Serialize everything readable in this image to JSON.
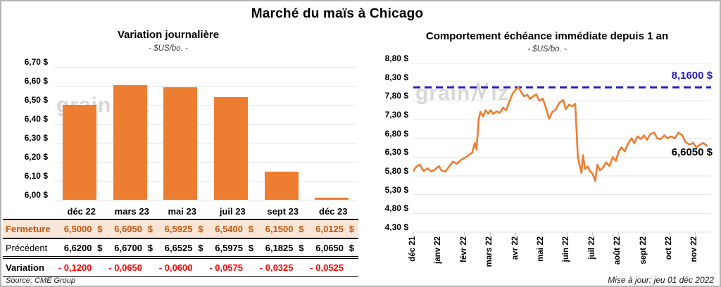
{
  "page": {
    "title": "Marché du maïs à Chicago",
    "source": "Source: CME Group",
    "updated": "Mise à jour: jeu 01 déc 2022",
    "watermark": {
      "prefix": "grain",
      "suffix": "iz",
      "full": "grainwiz"
    }
  },
  "colors": {
    "accent_orange": "#ED7D31",
    "fermeture_text": "#C15811",
    "fermeture_bg": "#FBE5D6",
    "variation_red": "#FF0000",
    "ref_blue": "#2222C8",
    "gridline": "#e3e3e3",
    "watermark": "#d8d8d8"
  },
  "chart_data": [
    {
      "type": "bar",
      "title": "Variation journalière",
      "subtitle": "- $US/bo. -",
      "categories": [
        "déc 22",
        "mars 23",
        "mai 23",
        "juil 23",
        "sept 23",
        "déc 23"
      ],
      "values": [
        6.5,
        6.605,
        6.5925,
        6.54,
        6.15,
        6.0125
      ],
      "ylim": [
        6.0,
        6.7
      ],
      "ytick_labels": [
        "6,70 $",
        "6,60 $",
        "6,50 $",
        "6,40 $",
        "6,30 $",
        "6,20 $",
        "6,10 $",
        "6,00 $"
      ],
      "bar_color": "#ED7D31",
      "grid": true,
      "legend": "none"
    },
    {
      "type": "line",
      "title": "Comportement échéance immédiate depuis 1 an",
      "subtitle": "- $US/bo. -",
      "x_labels": [
        "déc 21",
        "janv 22",
        "févr 22",
        "mars 22",
        "avr 22",
        "mai 22",
        "juin 22",
        "juil 22",
        "août 22",
        "sept 22",
        "oct 22",
        "nov 22"
      ],
      "x_months": [
        0.0,
        0.12,
        0.25,
        0.4,
        0.55,
        0.7,
        0.85,
        1.0,
        1.1,
        1.25,
        1.4,
        1.55,
        1.7,
        1.85,
        2.0,
        2.15,
        2.3,
        2.4,
        2.47,
        2.55,
        2.62,
        2.72,
        2.82,
        2.92,
        3.02,
        3.12,
        3.25,
        3.38,
        3.5,
        3.62,
        3.75,
        3.88,
        4.0,
        4.1,
        4.22,
        4.32,
        4.45,
        4.55,
        4.68,
        4.8,
        4.92,
        5.05,
        5.18,
        5.3,
        5.42,
        5.55,
        5.7,
        5.85,
        5.95,
        6.08,
        6.2,
        6.32,
        6.42,
        6.5,
        6.56,
        6.62,
        6.7,
        6.8,
        6.9,
        7.0,
        7.1,
        7.18,
        7.28,
        7.4,
        7.52,
        7.65,
        7.78,
        7.9,
        8.02,
        8.12,
        8.25,
        8.38,
        8.52,
        8.62,
        8.75,
        8.88,
        9.0,
        9.12,
        9.25,
        9.4,
        9.52,
        9.65,
        9.8,
        9.92,
        10.05,
        10.2,
        10.35,
        10.5,
        10.62,
        10.78,
        10.92,
        11.05,
        11.18,
        11.32,
        11.45
      ],
      "y": [
        5.92,
        6.05,
        6.1,
        5.93,
        6.0,
        5.92,
        5.97,
        6.06,
        5.94,
        5.91,
        6.05,
        6.18,
        6.12,
        6.22,
        6.28,
        6.35,
        6.42,
        6.68,
        6.5,
        7.3,
        7.51,
        7.38,
        7.55,
        7.46,
        7.55,
        7.45,
        7.52,
        7.48,
        7.62,
        7.55,
        7.78,
        8.0,
        8.1,
        8.16,
        8.02,
        7.92,
        7.96,
        7.85,
        7.92,
        7.97,
        7.8,
        7.86,
        7.6,
        7.32,
        7.5,
        7.56,
        7.75,
        7.82,
        7.58,
        7.7,
        7.65,
        7.72,
        6.3,
        6.05,
        5.88,
        6.35,
        5.98,
        6.05,
        5.92,
        5.85,
        5.66,
        6.1,
        5.95,
        6.02,
        6.16,
        6.06,
        6.3,
        6.2,
        6.45,
        6.56,
        6.45,
        6.66,
        6.8,
        6.67,
        6.85,
        6.78,
        6.88,
        6.76,
        6.92,
        6.95,
        6.8,
        6.78,
        6.88,
        6.8,
        6.85,
        6.8,
        6.95,
        6.88,
        6.7,
        6.63,
        6.68,
        6.56,
        6.63,
        6.68,
        6.605
      ],
      "ylim": [
        4.3,
        8.8
      ],
      "ytick_labels": [
        "8,80 $",
        "8,30 $",
        "7,80 $",
        "7,30 $",
        "6,80 $",
        "6,30 $",
        "5,80 $",
        "5,30 $",
        "4,80 $",
        "4,30 $"
      ],
      "line_color": "#ED7D31",
      "ref_line": {
        "value": 8.16,
        "label": "8,1600 $",
        "color": "#2222C8",
        "style": "dashed"
      },
      "end_label": {
        "value": 6.605,
        "label": "6,6050 $"
      },
      "grid": true,
      "legend": "none"
    }
  ],
  "table": {
    "columns": [
      "déc 22",
      "mars 23",
      "mai 23",
      "juil 23",
      "sept 23",
      "déc 23"
    ],
    "rows": [
      {
        "label": "Fermeture",
        "style": "fermeture",
        "unit": "$",
        "values": [
          "6,5000",
          "6,6050",
          "6,5925",
          "6,5400",
          "6,1500",
          "6,0125"
        ]
      },
      {
        "label": "Précédent",
        "style": "precedent",
        "unit": "$",
        "values": [
          "6,6200",
          "6,6700",
          "6,6525",
          "6,5975",
          "6,1825",
          "6,0650"
        ]
      },
      {
        "label": "Variation",
        "style": "variation",
        "unit": "",
        "values": [
          "- 0,1200",
          "- 0,0650",
          "- 0,0600",
          "- 0,0575",
          "- 0,0325",
          "- 0,0525"
        ]
      }
    ]
  }
}
